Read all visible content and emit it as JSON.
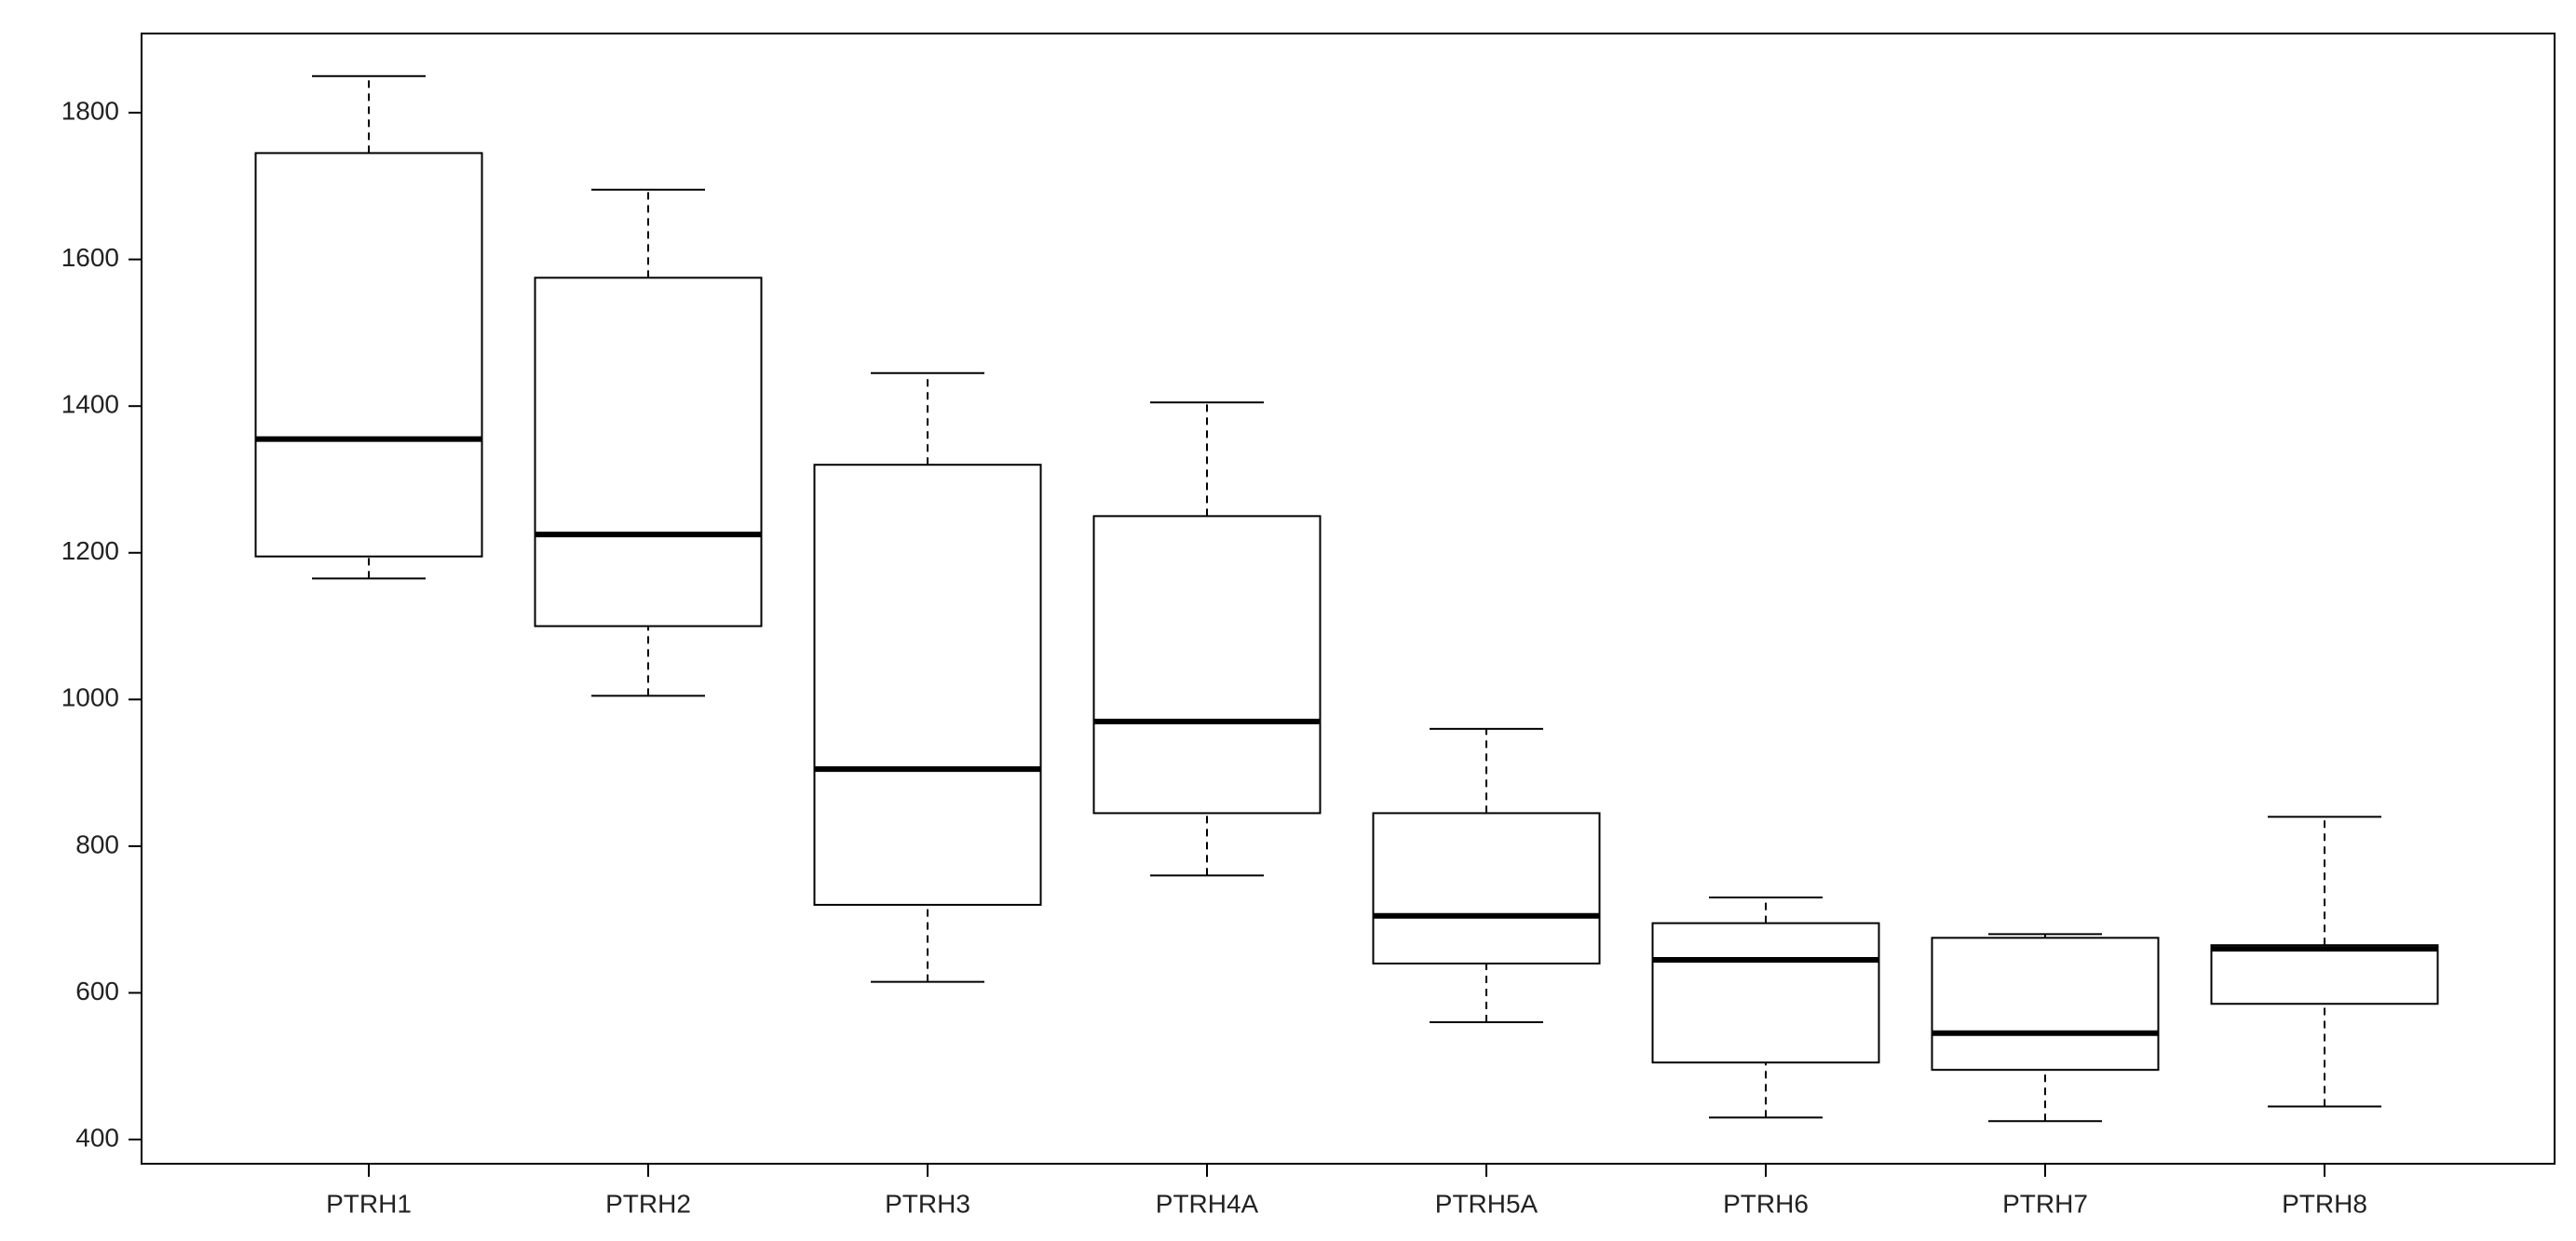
{
  "chart_data": {
    "type": "box",
    "categories": [
      "PTRH1",
      "PTRH2",
      "PTRH3",
      "PTRH4A",
      "PTRH5A",
      "PTRH6",
      "PTRH7",
      "PTRH8"
    ],
    "min": [
      1165,
      1005,
      615,
      760,
      560,
      430,
      425,
      445
    ],
    "q1": [
      1195,
      1100,
      720,
      845,
      640,
      505,
      495,
      585
    ],
    "median": [
      1355,
      1225,
      905,
      970,
      705,
      645,
      545,
      660
    ],
    "q3": [
      1745,
      1575,
      1320,
      1250,
      845,
      695,
      675,
      665
    ],
    "max": [
      1850,
      1695,
      1445,
      1405,
      960,
      730,
      680,
      840
    ],
    "color": "#000000",
    "ylim": [
      367,
      1908
    ],
    "yticks": [
      400,
      600,
      800,
      1000,
      1200,
      1400,
      1600,
      1800
    ]
  }
}
